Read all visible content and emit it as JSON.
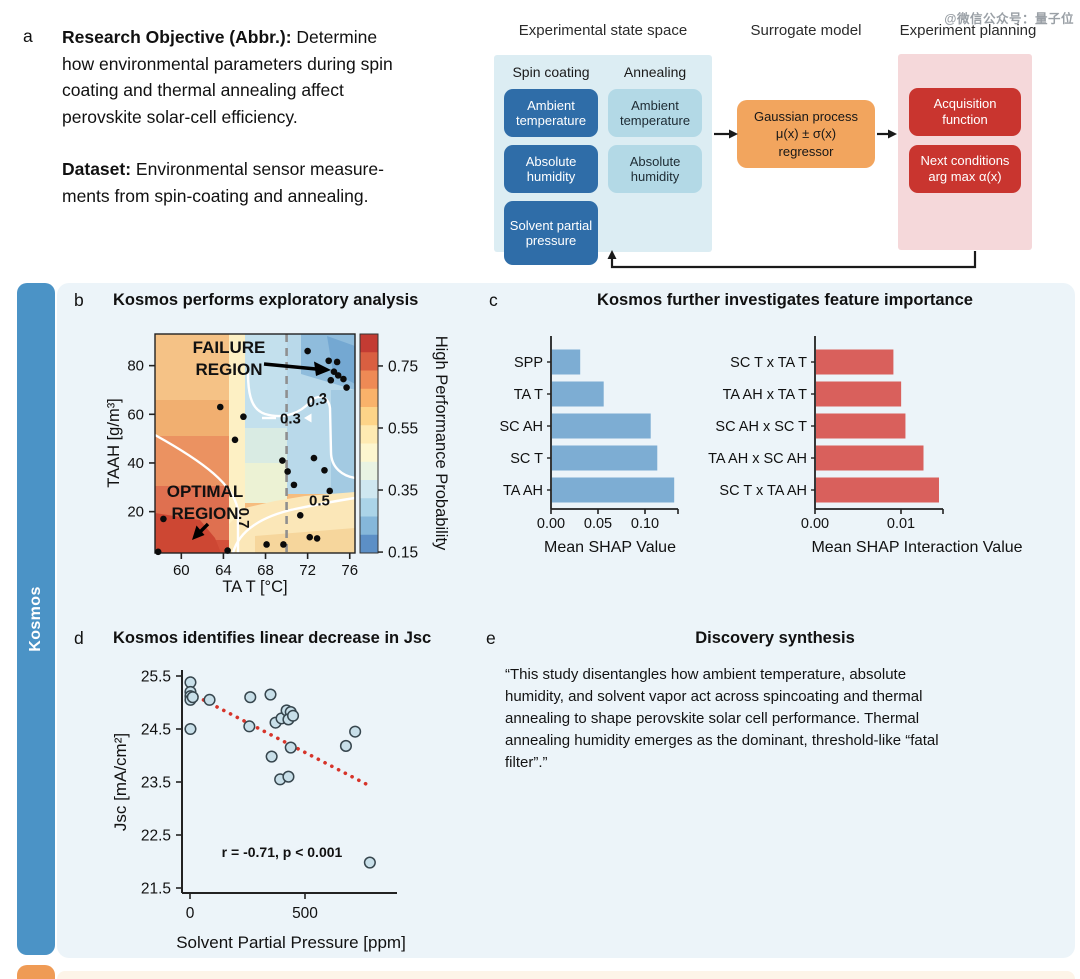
{
  "watermark": "@微信公众号：量子位",
  "panel_a": {
    "letter": "a",
    "objective_label": "Research Objective (Abbr.):",
    "objective_text": " Determine how environmental parameters during spin coating and thermal annealing affect perovskite solar-cell efficiency.",
    "dataset_label": "Dataset:",
    "dataset_text": " Environmental sensor measure-ments from spin-coating and annealing."
  },
  "diagram": {
    "state_space": {
      "title": "Experimental state space",
      "bg_color": "#dcedf3",
      "groups": [
        {
          "header": "Spin coating",
          "boxes": [
            "Ambient temperature",
            "Absolute humidity",
            "Solvent partial pressure"
          ],
          "box_color": "#2f6da8",
          "text_color": "#ffffff"
        },
        {
          "header": "Annealing",
          "boxes": [
            "Ambient temperature",
            "Absolute humidity"
          ],
          "box_color": "#b3d9e6",
          "text_color": "#1d2b33"
        }
      ]
    },
    "surrogate": {
      "title": "Surrogate model",
      "box_lines": [
        "Gaussian process",
        "μ(x) ± σ(x)",
        "regressor"
      ],
      "box_color": "#f2a55e"
    },
    "planning": {
      "title": "Experiment planning",
      "bg_color": "#f5d8da",
      "box_color": "#c9352f",
      "boxes": [
        [
          "Acquisition",
          "function"
        ],
        [
          "Next conditions",
          "arg max α(x)"
        ]
      ]
    }
  },
  "kosmos_sidebar": {
    "label": "Kosmos",
    "color": "#4b93c6"
  },
  "panels": {
    "b": {
      "letter": "b",
      "title": "Kosmos performs exploratory analysis"
    },
    "c": {
      "letter": "c",
      "title": "Kosmos further investigates feature importance"
    },
    "d": {
      "letter": "d",
      "title": "Kosmos identifies linear decrease in Jsc"
    },
    "e": {
      "letter": "e",
      "title": "Discovery synthesis",
      "quote": "“This study disentangles how ambient temperature, absolute humidity, and solvent vapor act across spincoating and thermal annealing to shape perovskite solar cell performance. Thermal annealing humidity emerges as the dominant, threshold-like “fatal filter”.”"
    }
  },
  "chart_data": [
    {
      "id": "performance_heatmap",
      "type": "heatmap",
      "xlabel": "TA T [°C]",
      "ylabel": "TAAH [g/m³]",
      "xticks": [
        60,
        64,
        68,
        72,
        76
      ],
      "yticks": [
        20,
        40,
        60,
        80
      ],
      "xlim": [
        57.5,
        76.5
      ],
      "ylim": [
        3,
        93
      ],
      "dashed_line_x": 70,
      "colorbar": {
        "label": "High Performance Probability",
        "ticks": [
          "0.75",
          "0.55",
          "0.35",
          "0.15"
        ],
        "tick_values": [
          0.75,
          0.55,
          0.35,
          0.15
        ],
        "vmin": 0.147,
        "vmax": 0.853,
        "colors_top_to_bottom": [
          "#c33b33",
          "#d95f41",
          "#ee8a55",
          "#f9b26a",
          "#fdd488",
          "#feeab2",
          "#fdf6cf",
          "#e9f3e3",
          "#cfe7f0",
          "#abd4e8",
          "#85b7da",
          "#5c8fc6"
        ]
      },
      "annotations": {
        "failure": "FAILURE REGION",
        "optimal": "OPTIMAL REGION"
      },
      "contour_labels": {
        "c03_italic": "0.3",
        "c03_inline": "0.3",
        "c05": "0.5",
        "c07": "0.7"
      },
      "experiment_points": [
        [
          72.0,
          86
        ],
        [
          74.0,
          82
        ],
        [
          74.8,
          81.5
        ],
        [
          74.5,
          77.5
        ],
        [
          74.9,
          76
        ],
        [
          74.2,
          74
        ],
        [
          75.4,
          74.5
        ],
        [
          75.7,
          71
        ],
        [
          63.7,
          63
        ],
        [
          65.9,
          59
        ],
        [
          65.1,
          49.5
        ],
        [
          69.6,
          41
        ],
        [
          70.1,
          36.5
        ],
        [
          72.6,
          42
        ],
        [
          73.6,
          37
        ],
        [
          70.7,
          31
        ],
        [
          74.1,
          28.5
        ],
        [
          71.3,
          18.5
        ],
        [
          58.3,
          17
        ],
        [
          72.2,
          9.5
        ],
        [
          72.9,
          9
        ],
        [
          68.1,
          6.5
        ],
        [
          69.7,
          6.5
        ],
        [
          64.4,
          4
        ],
        [
          57.8,
          3.5
        ]
      ]
    },
    {
      "id": "shap_values",
      "type": "bar",
      "orientation": "horizontal",
      "categories": [
        "SPP",
        "TA T",
        "SC AH",
        "SC T",
        "TA AH"
      ],
      "values": [
        0.03,
        0.055,
        0.105,
        0.112,
        0.13
      ],
      "xticks": [
        0,
        0.05,
        0.1
      ],
      "xtick_labels": [
        "0.00",
        "0.05",
        "0.10"
      ],
      "xlabel": "Mean SHAP Value",
      "bar_color": "#7dadd3"
    },
    {
      "id": "shap_interaction_values",
      "type": "bar",
      "orientation": "horizontal",
      "categories": [
        "SC T x TA T",
        "TA AH x TA T",
        "SC AH x SC T",
        "TA AH x SC AH",
        "SC T x TA AH"
      ],
      "values": [
        0.009,
        0.0099,
        0.0104,
        0.0125,
        0.0143
      ],
      "xticks": [
        0,
        0.01
      ],
      "xtick_labels": [
        "0.00",
        "0.01"
      ],
      "xlabel": "Mean SHAP Interaction Value",
      "bar_color": "#d9605c"
    },
    {
      "id": "jsc_vs_spp",
      "type": "scatter",
      "xlabel": "Solvent Partial Pressure [ppm]",
      "ylabel": "Jsc [mA/cm²]",
      "xticks": [
        0,
        500
      ],
      "yticks": [
        21.5,
        22.5,
        23.5,
        24.5,
        25.5
      ],
      "annotation": "r = -0.71, p < 0.001",
      "trend_line": {
        "x": [
          0,
          780
        ],
        "y": [
          25.18,
          23.43
        ],
        "style": "dotted",
        "color": "#d6342a"
      },
      "point_style": {
        "fill": "#c8dfe9",
        "stroke": "#37464e"
      },
      "points": [
        [
          2,
          25.38
        ],
        [
          2,
          25.2
        ],
        [
          2,
          25.12
        ],
        [
          2,
          25.05
        ],
        [
          12,
          25.1
        ],
        [
          85,
          25.05
        ],
        [
          2,
          24.5
        ],
        [
          262,
          25.1
        ],
        [
          350,
          25.15
        ],
        [
          258,
          24.55
        ],
        [
          372,
          24.62
        ],
        [
          398,
          24.7
        ],
        [
          420,
          24.85
        ],
        [
          438,
          24.82
        ],
        [
          428,
          24.68
        ],
        [
          448,
          24.75
        ],
        [
          355,
          23.98
        ],
        [
          438,
          24.15
        ],
        [
          392,
          23.55
        ],
        [
          428,
          23.6
        ],
        [
          678,
          24.18
        ],
        [
          718,
          24.45
        ],
        [
          782,
          21.98
        ]
      ]
    }
  ]
}
